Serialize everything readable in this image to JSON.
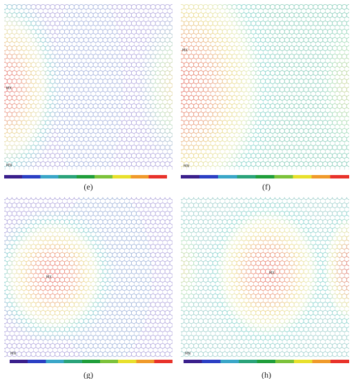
{
  "panels": [
    {
      "label": "(e)",
      "max_label": "MX",
      "min_label": "MN"
    },
    {
      "label": "(f)",
      "max_label": "MX",
      "min_label": "MN"
    },
    {
      "label": "(g)",
      "max_label": "MX",
      "min_label": "MN"
    },
    {
      "label": "(h)",
      "max_label": "MX",
      "min_label": "MN"
    }
  ]
}
